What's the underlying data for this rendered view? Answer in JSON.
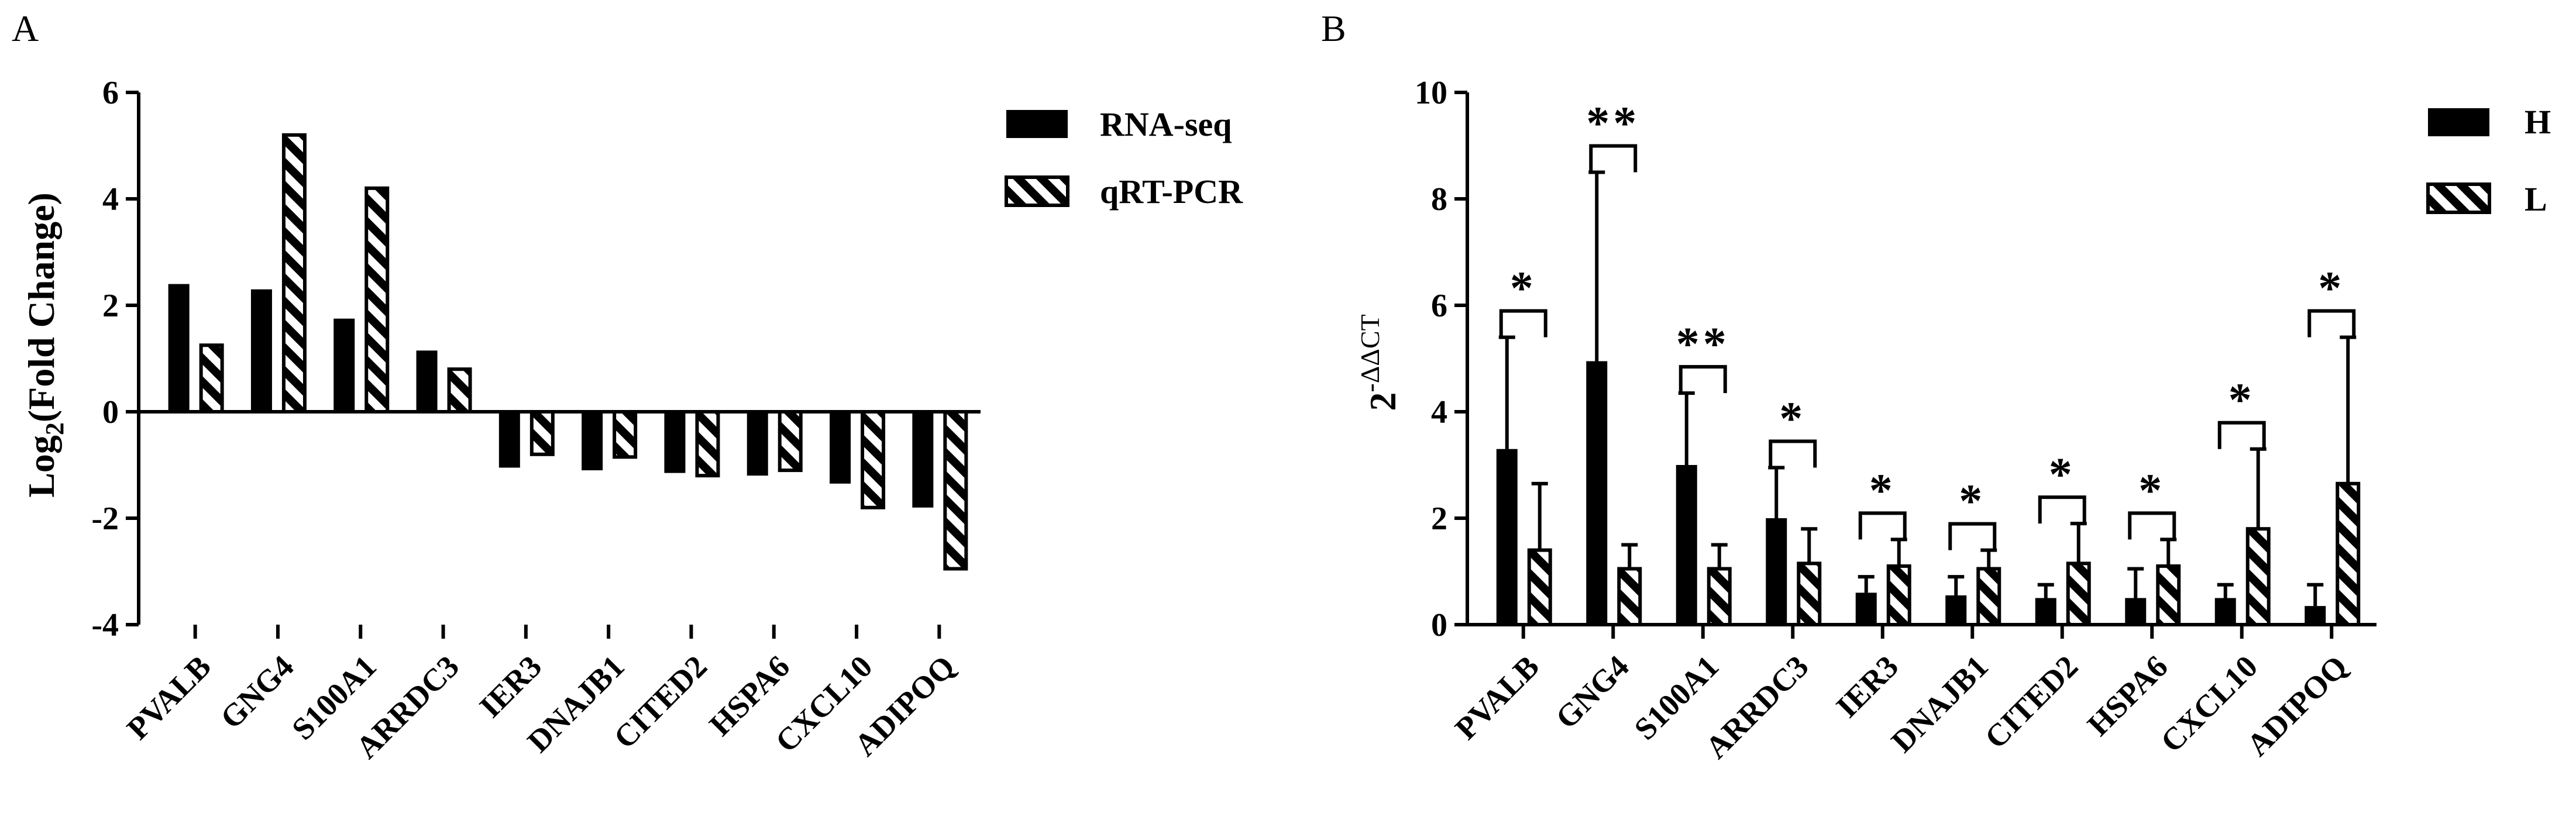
{
  "chart_data": [
    {
      "type": "bar",
      "panel_label": "A",
      "ylabel": "Log2(Fold Change)",
      "ylabel_parts": {
        "base": "Log",
        "sub": "2",
        "rest": "(Fold Change)"
      },
      "ylim": [
        -4,
        6
      ],
      "yticks": [
        "6",
        "4",
        "2",
        "0",
        "-2",
        "-4"
      ],
      "ytick_values": [
        6,
        4,
        2,
        0,
        -2,
        -4
      ],
      "categories": [
        "PVALB",
        "GNG4",
        "S100A1",
        "ARRDC3",
        "IER3",
        "DNAJB1",
        "CITED2",
        "HSPA6",
        "CXCL10",
        "ADIPOQ"
      ],
      "series": [
        {
          "name": "RNA-seq",
          "fill": "solid",
          "values": [
            2.4,
            2.3,
            1.75,
            1.15,
            -1.05,
            -1.1,
            -1.15,
            -1.2,
            -1.35,
            -1.8
          ]
        },
        {
          "name": "qRT-PCR",
          "fill": "hatched",
          "values": [
            1.25,
            5.2,
            4.2,
            0.8,
            -0.8,
            -0.85,
            -1.2,
            -1.1,
            -1.8,
            -2.95
          ]
        }
      ],
      "legend_position": "top-right",
      "grid": false
    },
    {
      "type": "bar",
      "panel_label": "B",
      "ylabel": "2-ΔΔCT",
      "ylabel_parts": {
        "base": "2",
        "sup": "-ΔΔCT"
      },
      "ylim": [
        0,
        10
      ],
      "yticks": [
        "10",
        "8",
        "6",
        "4",
        "2",
        "0"
      ],
      "ytick_values": [
        10,
        8,
        6,
        4,
        2,
        0
      ],
      "categories": [
        "PVALB",
        "GNG4",
        "S100A1",
        "ARRDC3",
        "IER3",
        "DNAJB1",
        "CITED2",
        "HSPA6",
        "CXCL10",
        "ADIPOQ"
      ],
      "series": [
        {
          "name": "H",
          "fill": "solid",
          "values": [
            3.3,
            4.95,
            3.0,
            2.0,
            0.6,
            0.55,
            0.5,
            0.5,
            0.5,
            0.35
          ],
          "error": [
            2.1,
            3.55,
            1.35,
            0.95,
            0.3,
            0.35,
            0.25,
            0.55,
            0.25,
            0.4
          ]
        },
        {
          "name": "L",
          "fill": "hatched",
          "values": [
            1.4,
            1.05,
            1.05,
            1.15,
            1.1,
            1.05,
            1.15,
            1.1,
            1.8,
            2.65
          ],
          "error": [
            1.25,
            0.45,
            0.45,
            0.65,
            0.5,
            0.35,
            0.75,
            0.5,
            1.5,
            2.75
          ]
        }
      ],
      "significance": [
        "*",
        "**",
        "**",
        "*",
        "*",
        "*",
        "*",
        "*",
        "*",
        "*"
      ],
      "legend_position": "top-right",
      "grid": false
    }
  ]
}
